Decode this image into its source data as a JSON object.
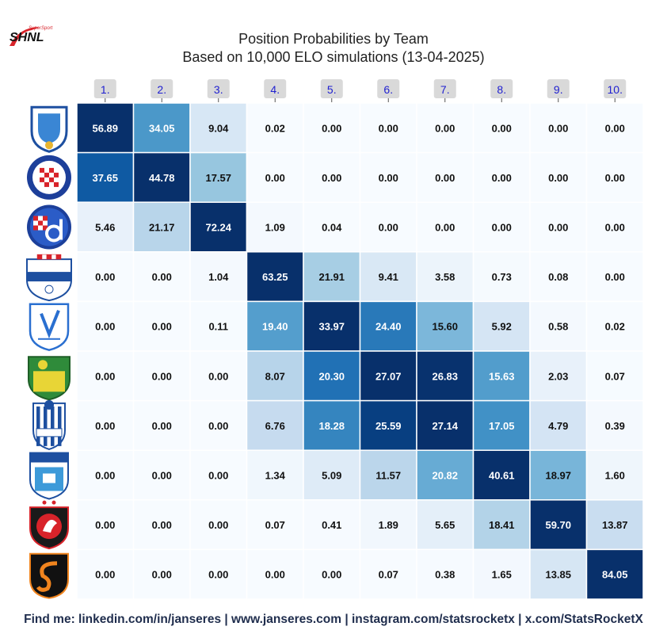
{
  "brand": {
    "main": "SHNL",
    "sup": "SuperSport"
  },
  "title_line1": "Position Probabilities by Team",
  "title_line2": "Based on 10,000 ELO simulations (13-04-2025)",
  "footer": "Find me: linkedin.com/in/janseres | www.janseres.com | instagram.com/statsrocketx | x.com/StatsRocketX",
  "colors": {
    "low": "#f7fbff",
    "high": "#08306b",
    "tick_bg": "#d9d9d9",
    "tick_text": "#1f1fd0",
    "brand_red": "#d8232a"
  },
  "chart_data": {
    "type": "heatmap",
    "title": "Position Probabilities by Team",
    "subtitle": "Based on 10,000 ELO simulations (13-04-2025)",
    "xlabel": "",
    "ylabel": "",
    "x_categories": [
      "1.",
      "2.",
      "3.",
      "4.",
      "5.",
      "6.",
      "7.",
      "8.",
      "9.",
      "10."
    ],
    "teams": [
      {
        "id": "rijeka",
        "crest": "rijeka-crest-icon",
        "values": [
          56.89,
          34.05,
          9.04,
          0.02,
          0.0,
          0.0,
          0.0,
          0.0,
          0.0,
          0.0
        ]
      },
      {
        "id": "hajduk",
        "crest": "hajduk-crest-icon",
        "values": [
          37.65,
          44.78,
          17.57,
          0.0,
          0.0,
          0.0,
          0.0,
          0.0,
          0.0,
          0.0
        ]
      },
      {
        "id": "dinamo",
        "crest": "dinamo-crest-icon",
        "values": [
          5.46,
          21.17,
          72.24,
          1.09,
          0.04,
          0.0,
          0.0,
          0.0,
          0.0,
          0.0
        ]
      },
      {
        "id": "slaven",
        "crest": "slaven-crest-icon",
        "values": [
          0.0,
          0.0,
          1.04,
          63.25,
          21.91,
          9.41,
          3.58,
          0.73,
          0.08,
          0.0
        ]
      },
      {
        "id": "varazdin",
        "crest": "varazdin-crest-icon",
        "values": [
          0.0,
          0.0,
          0.11,
          19.4,
          33.97,
          24.4,
          15.6,
          5.92,
          0.58,
          0.02
        ]
      },
      {
        "id": "istra",
        "crest": "istra-crest-icon",
        "values": [
          0.0,
          0.0,
          0.0,
          8.07,
          20.3,
          27.07,
          26.83,
          15.63,
          2.03,
          0.07
        ]
      },
      {
        "id": "lokomotiva",
        "crest": "lokomotiva-crest-icon",
        "values": [
          0.0,
          0.0,
          0.0,
          6.76,
          18.28,
          25.59,
          27.14,
          17.05,
          4.79,
          0.39
        ]
      },
      {
        "id": "osijek",
        "crest": "osijek-crest-icon",
        "values": [
          0.0,
          0.0,
          0.0,
          1.34,
          5.09,
          11.57,
          20.82,
          40.61,
          18.97,
          1.6
        ]
      },
      {
        "id": "gorica",
        "crest": "gorica-crest-icon",
        "values": [
          0.0,
          0.0,
          0.0,
          0.07,
          0.41,
          1.89,
          5.65,
          18.41,
          59.7,
          13.87
        ]
      },
      {
        "id": "sibenik",
        "crest": "sibenik-crest-icon",
        "values": [
          0.0,
          0.0,
          0.0,
          0.0,
          0.0,
          0.07,
          0.38,
          1.65,
          13.85,
          84.05
        ]
      }
    ],
    "value_format": "0.00",
    "colormap": "Blues",
    "grid": true,
    "legend": "none"
  }
}
